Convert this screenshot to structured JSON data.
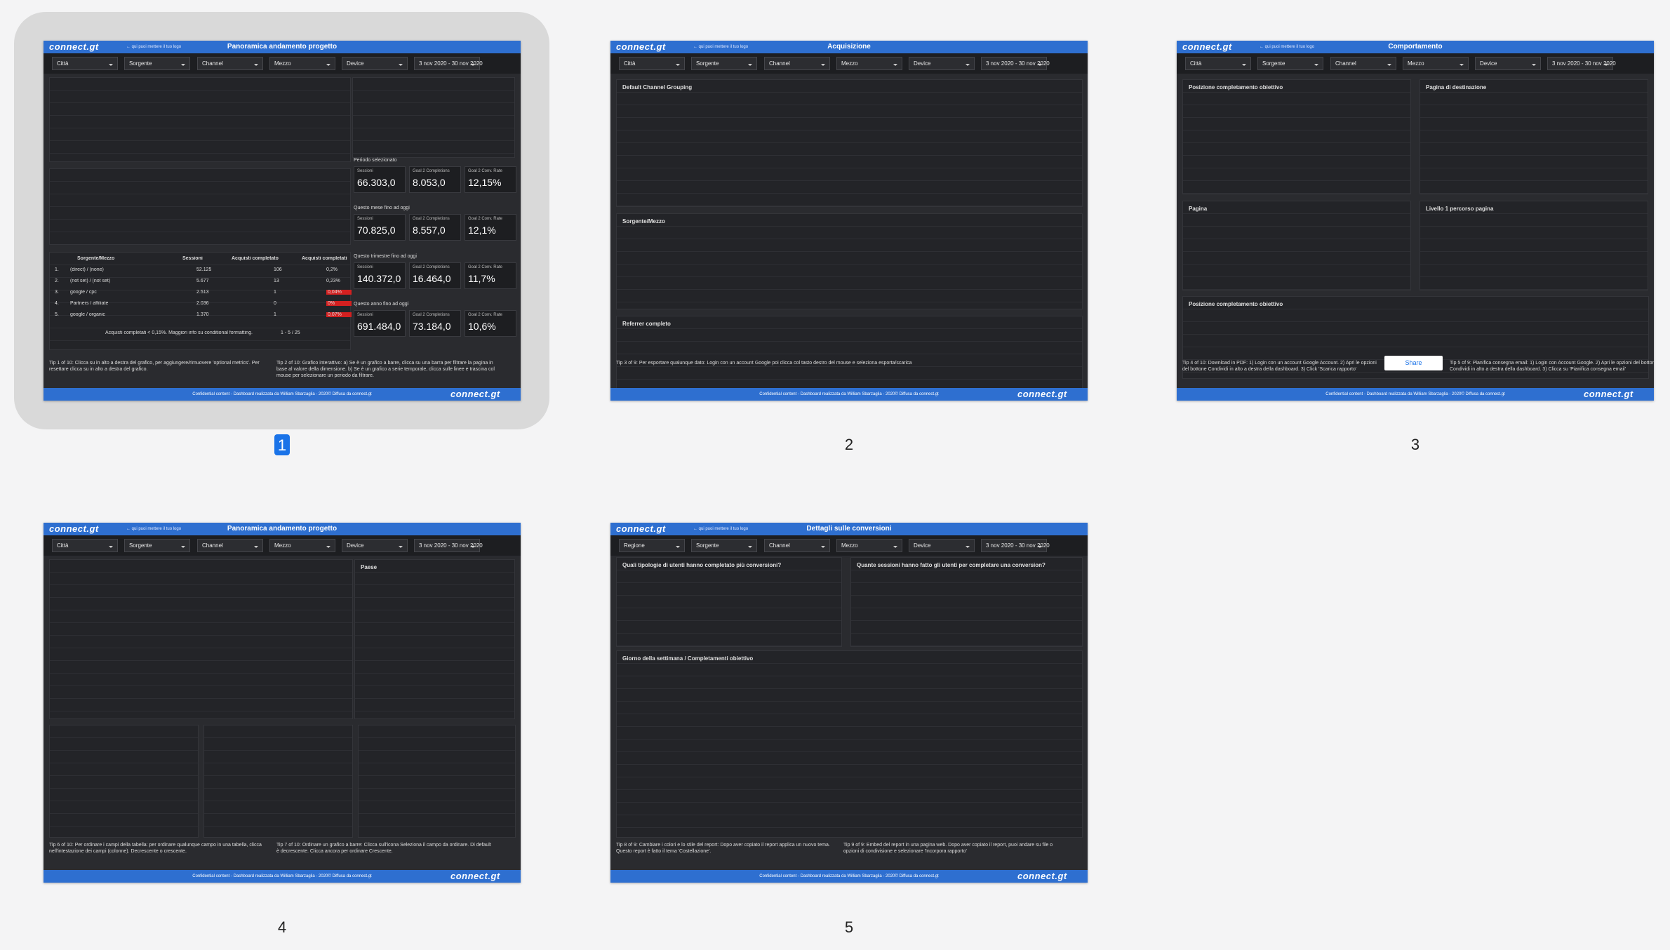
{
  "logo": "connect.gt",
  "logo_note": "← qui puoi mettere il tuo logo",
  "footer": "Confidential content - Dashboard realizzata da William Sbarzaglia - 2020© Diffusa da connect.gt",
  "pages": [
    {
      "number": "1",
      "title": "Panoramica andamento progetto",
      "filters": [
        "Città",
        "Sorgente",
        "Channel",
        "Mezzo",
        "Device",
        "3 nov 2020 - 30 nov 2020"
      ],
      "headings": [],
      "kpis": [
        {
          "label": "Periodo selezionato",
          "items": [
            {
              "name": "Sessioni",
              "value": "66.303,0"
            },
            {
              "name": "Goal 2 Completions",
              "value": "8.053,0"
            },
            {
              "name": "Goal 2 Conv. Rate",
              "value": "12,15%"
            }
          ]
        },
        {
          "label": "Questo mese fino ad oggi",
          "items": [
            {
              "name": "Sessioni",
              "value": "70.825,0"
            },
            {
              "name": "Goal 2 Completions",
              "value": "8.557,0"
            },
            {
              "name": "Goal 2 Conv. Rate",
              "value": "12,1%"
            }
          ]
        },
        {
          "label": "Questo trimestre fino ad oggi",
          "items": [
            {
              "name": "Sessioni",
              "value": "140.372,0"
            },
            {
              "name": "Goal 2 Completions",
              "value": "16.464,0"
            },
            {
              "name": "Goal 2 Conv. Rate",
              "value": "11,7%"
            }
          ]
        },
        {
          "label": "Questo anno fino ad oggi",
          "items": [
            {
              "name": "Sessioni",
              "value": "691.484,0"
            },
            {
              "name": "Goal 2 Completions",
              "value": "73.184,0"
            },
            {
              "name": "Goal 2 Conv. Rate",
              "value": "10,6%"
            }
          ]
        }
      ],
      "table": {
        "header": [
          "Sorgente/Mezzo",
          "Sessioni",
          "Acquisti completato",
          "Acquisti completati"
        ],
        "rows": [
          [
            "1.",
            "(direct) / (none)",
            "52.125",
            "106",
            "0,2%"
          ],
          [
            "2.",
            "(not set) / (not set)",
            "5.677",
            "13",
            "0,23%"
          ],
          [
            "3.",
            "google / cpc",
            "2.513",
            "1",
            "0,04%"
          ],
          [
            "4.",
            "Partners / affiliate",
            "2.036",
            "0",
            "0%"
          ],
          [
            "5.",
            "google / organic",
            "1.370",
            "1",
            "0,07%"
          ]
        ],
        "note": "Acquisti completati < 0,15%. Maggiori info su conditional formatting.",
        "pagination": "1 - 5 / 25"
      },
      "tips": [
        "Tip 1 of 10: Clicca su in alto a destra del grafico, per aggiungere/rimuovere 'optional metrics'. Per resettare clicca su in alto a destra del grafico.",
        "Tip 2 of 10: Grafico interattivo: a) Se è un grafico a barre, clicca su una barra per filtrare la pagina in base al valore della dimensione. b) Se è un grafico a serie temporale, clicca sulle linee e trascina col mouse per selezionare un periodo da filtrare."
      ]
    },
    {
      "number": "2",
      "title": "Acquisizione",
      "filters": [
        "Città",
        "Sorgente",
        "Channel",
        "Mezzo",
        "Device",
        "3 nov 2020 - 30 nov 2020"
      ],
      "headings": [
        "Default Channel Grouping",
        "Sorgente/Mezzo",
        "Referrer completo"
      ],
      "tips": [
        "Tip 3 of 9: Per esportare qualunque dato: Login con un account Google poi clicca col tasto destro del mouse e seleziona esporta/scarica"
      ]
    },
    {
      "number": "3",
      "title": "Comportamento",
      "filters": [
        "Città",
        "Sorgente",
        "Channel",
        "Mezzo",
        "Device",
        "3 nov 2020 - 30 nov 2020"
      ],
      "headings": [
        "Posizione completamento obiettivo",
        "Pagina di destinazione",
        "Pagina",
        "Livello 1 percorso pagina",
        "Posizione completamento obiettivo"
      ],
      "button": "Share",
      "tips": [
        "Tip 4 of 10: Download in PDF: 1) Login con un account Google Account. 2) Apri le opzioni del bottone Condividi in alto a destra della dashboard. 3) Click 'Scarica rapporto'",
        "Tip 5 of 9: Pianifica consegna email: 1) Login con Account Google. 2) Apri le opzioni del bottone Condividi in alto a destra della dashboard. 3) Clicca su 'Pianifica consegna email'"
      ]
    },
    {
      "number": "4",
      "title": "Panoramica andamento progetto",
      "filters": [
        "Città",
        "Sorgente",
        "Channel",
        "Mezzo",
        "Device",
        "3 nov 2020 - 30 nov 2020"
      ],
      "headings": [
        "",
        "Paese"
      ],
      "tips": [
        "Tip 6 of 10: Per ordinare i campi della tabella: per ordinare qualunque campo in una tabella, clicca nell'intestazione dei campi (colonne). Decrescente o crescente.",
        "Tip 7 of 10: Ordinare un grafico a barre: Clicca sull'icona Seleziona il campo da ordinare. Di default è decrescente. Clicca ancora per ordinare Crescente."
      ]
    },
    {
      "number": "5",
      "title": "Dettagli sulle conversioni",
      "filters": [
        "Regione",
        "Sorgente",
        "Channel",
        "Mezzo",
        "Device",
        "3 nov 2020 - 30 nov 2020"
      ],
      "headings": [
        "Quali tipologie di utenti hanno completato più conversioni?",
        "Quante sessioni hanno fatto gli utenti per completare una conversion?",
        "Giorno della settimana / Completamenti obiettivo"
      ],
      "tips": [
        "Tip 8 of 9: Cambiare i colori e lo stile del report: Dopo aver copiato il report applica un nuovo tema. Questo report è fatto il tema 'Costellazione'.",
        "Tip 9 of 9: Embed del report in una pagina web. Dopo aver copiato il report, puoi andare su file o opzioni di condivisione e selezionare 'Incorpora rapporto'"
      ]
    }
  ]
}
